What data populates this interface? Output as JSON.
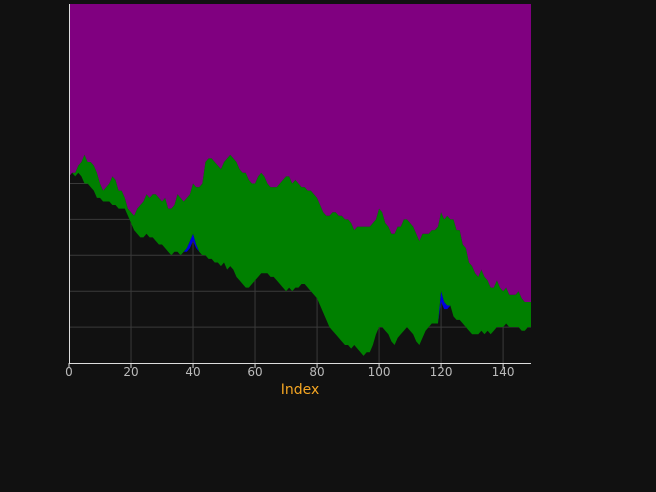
{
  "chart_data": {
    "type": "area",
    "stacked": true,
    "xlabel": "Index",
    "ylabel": "",
    "xlim": [
      0,
      149
    ],
    "ylim": [
      0,
      100
    ],
    "x_ticks": [
      0,
      20,
      40,
      60,
      80,
      100,
      120,
      140
    ],
    "x_tick_labels": [
      "0",
      "20",
      "40",
      "60",
      "80",
      "100",
      "120",
      "140"
    ],
    "y_grid_values": [
      10,
      20,
      30,
      40,
      50
    ],
    "grid": true,
    "legend": "none",
    "colors": {
      "background": "#111111",
      "grid": "#3a3a3a",
      "axis": "#dddddd",
      "tick_label": "#bbbbbb",
      "axis_label": "#f5a623",
      "series": [
        "#111111",
        "#0000dd",
        "#008000",
        "#800080"
      ]
    },
    "x_step": 1,
    "series": [
      {
        "role": "base",
        "values": [
          52,
          53,
          52,
          53,
          52,
          50,
          50,
          49,
          48,
          46,
          46,
          45,
          45,
          45,
          44,
          44,
          43,
          43,
          43,
          41,
          39,
          37,
          36,
          35,
          35,
          36,
          35,
          35,
          34,
          33,
          33,
          32,
          31,
          30,
          31,
          31,
          30,
          31,
          31,
          32,
          34,
          32,
          31,
          30,
          30,
          29,
          29,
          28,
          28,
          27,
          28,
          26,
          27,
          26,
          24,
          23,
          22,
          21,
          21,
          22,
          23,
          24,
          25,
          25,
          25,
          24,
          24,
          23,
          22,
          21,
          20,
          21,
          20,
          21,
          21,
          22,
          22,
          21,
          20,
          19,
          18,
          16,
          14,
          12,
          10,
          9,
          8,
          7,
          6,
          5,
          5,
          4,
          5,
          4,
          3,
          2,
          3,
          3,
          5,
          8,
          10,
          10,
          9,
          8,
          6,
          5,
          7,
          8,
          9,
          10,
          9,
          8,
          6,
          5,
          7,
          9,
          10,
          11,
          11,
          11,
          17,
          15,
          15,
          16,
          13,
          12,
          12,
          11,
          10,
          9,
          8,
          8,
          8,
          9,
          8,
          9,
          8,
          9,
          10,
          10,
          10,
          11,
          10,
          10,
          10,
          10,
          9,
          9,
          10,
          10
        ]
      },
      {
        "role": "blue",
        "values": [
          0,
          0,
          0,
          0,
          0,
          0,
          0,
          0,
          0,
          0,
          0,
          0,
          0,
          0,
          0,
          0,
          0,
          0,
          0,
          0,
          0,
          0,
          0,
          0,
          0,
          0,
          0,
          0,
          0,
          0,
          0,
          0,
          0,
          0,
          0,
          0,
          0,
          0,
          1,
          2,
          2,
          1,
          0,
          0,
          0,
          0,
          0,
          0,
          0,
          0,
          0,
          0,
          0,
          0,
          0,
          0,
          0,
          0,
          0,
          0,
          0,
          0,
          0,
          0,
          0,
          0,
          0,
          0,
          0,
          0,
          0,
          0,
          0,
          0,
          0,
          0,
          0,
          0,
          0,
          0,
          0,
          0,
          0,
          0,
          0,
          0,
          0,
          0,
          0,
          0,
          0,
          0,
          0,
          0,
          0,
          0,
          0,
          0,
          0,
          0,
          0,
          0,
          0,
          0,
          0,
          0,
          0,
          0,
          0,
          0,
          0,
          0,
          0,
          0,
          0,
          0,
          0,
          0,
          0,
          0,
          3,
          2,
          1,
          0,
          0,
          0,
          0,
          0,
          0,
          0,
          0,
          0,
          0,
          0,
          0,
          0,
          0,
          0,
          0,
          0,
          0,
          0,
          0,
          0,
          0,
          0,
          0,
          0,
          0,
          0
        ]
      },
      {
        "role": "green",
        "values": [
          0,
          0,
          1,
          2,
          4,
          8,
          6,
          7,
          7,
          7,
          4,
          3,
          4,
          5,
          8,
          7,
          5,
          5,
          3,
          2,
          3,
          4,
          7,
          9,
          10,
          11,
          11,
          12,
          13,
          13,
          12,
          14,
          12,
          13,
          13,
          16,
          16,
          14,
          14,
          13,
          14,
          16,
          18,
          20,
          26,
          28,
          28,
          28,
          27,
          27,
          28,
          31,
          31,
          31,
          32,
          31,
          31,
          32,
          30,
          28,
          27,
          28,
          28,
          27,
          25,
          25,
          25,
          26,
          28,
          30,
          32,
          31,
          30,
          30,
          29,
          27,
          27,
          27,
          28,
          28,
          28,
          28,
          28,
          29,
          31,
          33,
          34,
          34,
          35,
          35,
          35,
          35,
          32,
          34,
          35,
          36,
          35,
          35,
          34,
          32,
          33,
          32,
          30,
          30,
          30,
          31,
          31,
          30,
          31,
          30,
          30,
          30,
          30,
          29,
          29,
          27,
          26,
          26,
          26,
          27,
          22,
          23,
          25,
          24,
          27,
          25,
          25,
          22,
          22,
          19,
          19,
          17,
          16,
          17,
          16,
          14,
          13,
          12,
          13,
          11,
          10,
          10,
          9,
          9,
          9,
          10,
          9,
          8,
          7,
          7
        ]
      },
      {
        "role": "purple",
        "values": [
          48,
          47,
          47,
          45,
          44,
          42,
          44,
          44,
          45,
          47,
          50,
          52,
          51,
          50,
          48,
          49,
          52,
          52,
          54,
          57,
          58,
          59,
          57,
          56,
          55,
          53,
          54,
          53,
          53,
          54,
          55,
          54,
          57,
          57,
          56,
          53,
          54,
          55,
          54,
          53,
          50,
          51,
          51,
          50,
          44,
          43,
          43,
          44,
          45,
          46,
          44,
          43,
          42,
          43,
          44,
          46,
          47,
          47,
          49,
          50,
          50,
          48,
          47,
          48,
          50,
          51,
          51,
          51,
          50,
          49,
          48,
          48,
          50,
          49,
          50,
          51,
          51,
          52,
          52,
          53,
          54,
          56,
          58,
          59,
          59,
          58,
          58,
          59,
          59,
          60,
          60,
          61,
          63,
          62,
          62,
          62,
          62,
          62,
          61,
          60,
          58,
          58,
          61,
          62,
          64,
          64,
          62,
          62,
          60,
          60,
          61,
          62,
          64,
          66,
          64,
          64,
          64,
          63,
          63,
          62,
          58,
          60,
          59,
          60,
          60,
          63,
          63,
          67,
          68,
          72,
          73,
          75,
          76,
          74,
          76,
          77,
          79,
          79,
          77,
          79,
          80,
          79,
          81,
          81,
          81,
          80,
          82,
          83,
          83,
          83
        ]
      }
    ]
  }
}
